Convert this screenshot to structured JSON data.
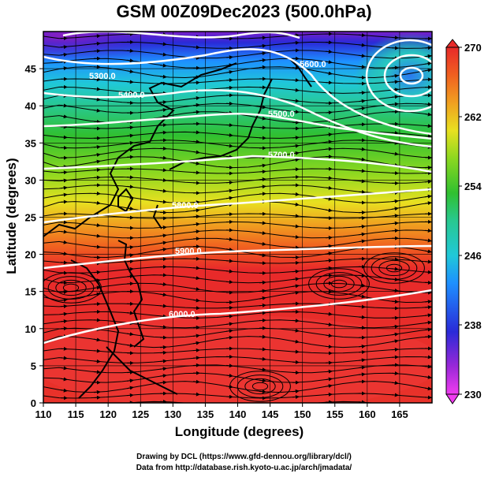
{
  "title": "GSM 00Z09Dec2023 (500.0hPa)",
  "x_axis": {
    "label": "Longitude (degrees)",
    "ticks": [
      "110",
      "115",
      "120",
      "125",
      "130",
      "135",
      "140",
      "145",
      "150",
      "155",
      "160",
      "165"
    ],
    "range": [
      110,
      170
    ]
  },
  "y_axis": {
    "label": "Latitude  (degrees)",
    "ticks": [
      "0",
      "5",
      "10",
      "15",
      "20",
      "25",
      "30",
      "35",
      "40",
      "45"
    ],
    "range": [
      0,
      50
    ]
  },
  "colorbar": {
    "labels": [
      "270",
      "262",
      "254",
      "246",
      "238",
      "230"
    ],
    "range": [
      230,
      270
    ],
    "colors": [
      "#f03cf0",
      "#7a1fc8",
      "#2a2ad8",
      "#1e90ff",
      "#20c8d8",
      "#28c890",
      "#30c030",
      "#8cd820",
      "#e8e020",
      "#f0a020",
      "#f06020",
      "#e82a2a"
    ]
  },
  "contours": [
    {
      "label": "5300.0"
    },
    {
      "label": "5400.0"
    },
    {
      "label": "5500.0"
    },
    {
      "label": "5600.0"
    },
    {
      "label": "5700.0"
    },
    {
      "label": "5800.0"
    },
    {
      "label": "5900.0"
    },
    {
      "label": "6000.0"
    }
  ],
  "credits": {
    "line1": "Drawing by DCL (https://www.gfd-dennou.org/library/dcl/)",
    "line2": "Data from http://database.rish.kyoto-u.ac.jp/arch/jmadata/"
  }
}
